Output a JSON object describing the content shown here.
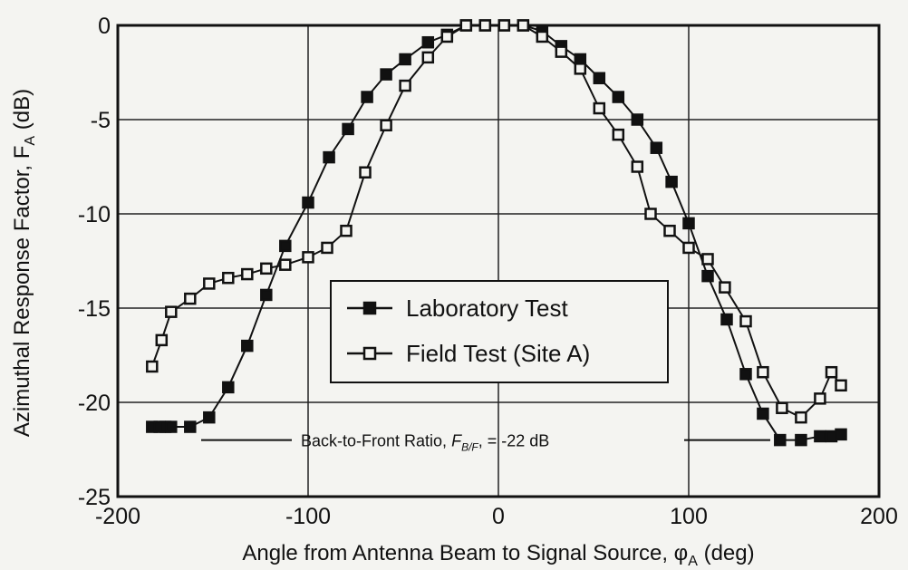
{
  "chart_data": {
    "type": "line",
    "xlabel": {
      "text": "Angle from Antenna Beam to Signal Source, ",
      "symbol": "φ",
      "subscript": "A",
      "suffix": " (deg)"
    },
    "ylabel": {
      "text": "Azimuthal Response Factor, ",
      "symbol": "F",
      "subscript": "A",
      "suffix": " (dB)"
    },
    "annotation": {
      "text": "Back-to-Front Ratio, ",
      "symbol": "F",
      "subscript": "B/F",
      "suffix": ", = -22 dB",
      "value": -22
    },
    "xlim": [
      -200,
      200
    ],
    "xticks": [
      -200,
      -100,
      0,
      100,
      200
    ],
    "ylim": [
      -25,
      0
    ],
    "yticks": [
      -25,
      -20,
      -15,
      -10,
      -5,
      0
    ],
    "grid": true,
    "legend": "center",
    "series": [
      {
        "name": "Laboratory Test",
        "color": "#111",
        "marker": "filled-square",
        "x": [
          -182,
          -178,
          -175,
          -172,
          -162,
          -152,
          -142,
          -132,
          -122,
          -112,
          -100,
          -89,
          -79,
          -69,
          -59,
          -49,
          -37,
          -27,
          -17,
          -7,
          3,
          13,
          23,
          33,
          43,
          53,
          63,
          73,
          83,
          91,
          100,
          110,
          120,
          130,
          139,
          148,
          159,
          169,
          175,
          180
        ],
        "values": [
          -21.3,
          -21.3,
          -21.3,
          -21.3,
          -21.3,
          -20.8,
          -19.2,
          -17.0,
          -14.3,
          -11.7,
          -9.4,
          -7.0,
          -5.5,
          -3.8,
          -2.6,
          -1.8,
          -0.9,
          -0.5,
          0,
          0,
          0,
          0,
          -0.3,
          -1.1,
          -1.8,
          -2.8,
          -3.8,
          -5.0,
          -6.5,
          -8.3,
          -10.5,
          -13.3,
          -15.6,
          -18.5,
          -20.6,
          -22.0,
          -22.0,
          -21.8,
          -21.8,
          -21.7
        ]
      },
      {
        "name": "Field Test (Site A)",
        "color": "#111",
        "marker": "open-square",
        "x": [
          -182,
          -177,
          -172,
          -162,
          -152,
          -142,
          -132,
          -122,
          -112,
          -100,
          -90,
          -80,
          -70,
          -59,
          -49,
          -37,
          -27,
          -17,
          -7,
          3,
          13,
          23,
          33,
          43,
          53,
          63,
          73,
          80,
          90,
          100,
          110,
          119,
          130,
          139,
          149,
          159,
          169,
          175,
          180
        ],
        "values": [
          -18.1,
          -16.7,
          -15.2,
          -14.5,
          -13.7,
          -13.4,
          -13.2,
          -12.9,
          -12.7,
          -12.3,
          -11.8,
          -10.9,
          -7.8,
          -5.3,
          -3.2,
          -1.7,
          -0.6,
          0,
          0,
          0,
          0,
          -0.6,
          -1.4,
          -2.3,
          -4.4,
          -5.8,
          -7.5,
          -10.0,
          -10.9,
          -11.8,
          -12.4,
          -13.9,
          -15.7,
          -18.4,
          -20.3,
          -20.8,
          -19.8,
          -18.4,
          -19.1
        ]
      }
    ]
  }
}
